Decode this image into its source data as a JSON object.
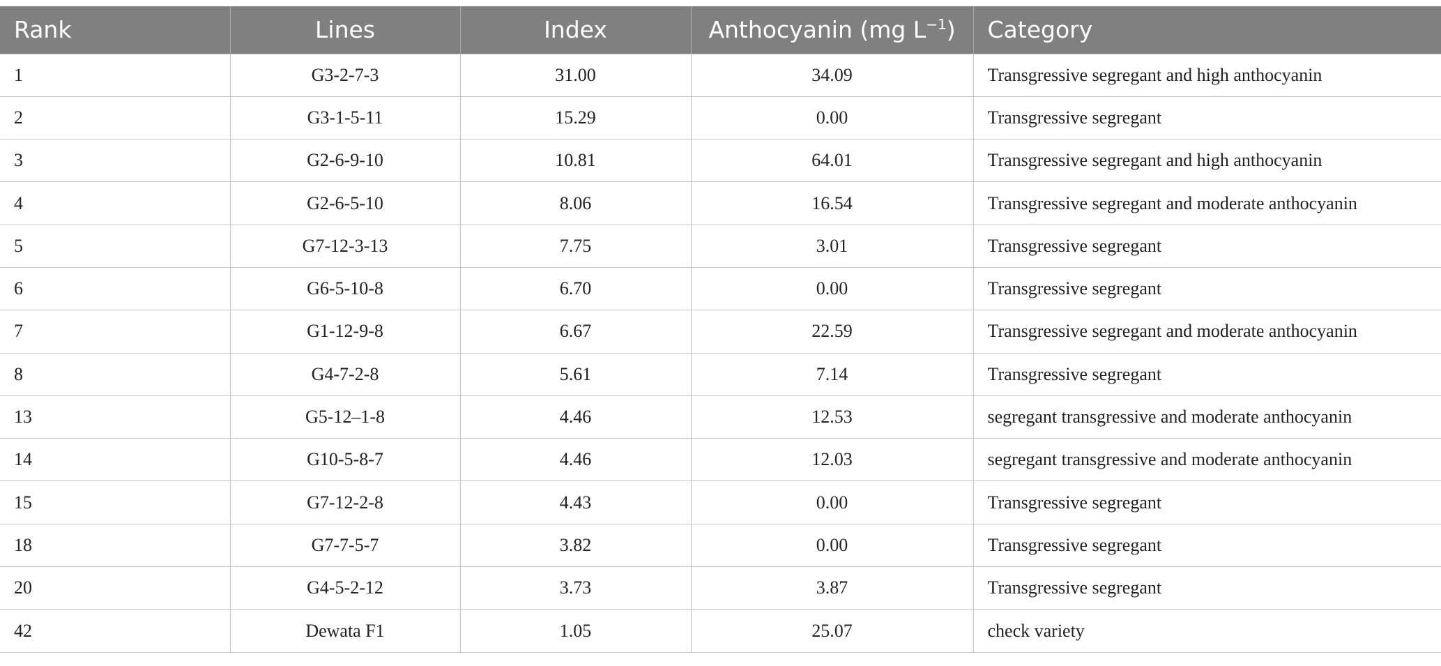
{
  "table": {
    "headers": {
      "rank": "Rank",
      "lines": "Lines",
      "index": "Index",
      "anthocyanin": "Anthocyanin (mg L",
      "anthocyanin_sup": "−1",
      "anthocyanin_close": ")",
      "category": "Category"
    },
    "rows": [
      {
        "rank": "1",
        "line": "G3-2-7-3",
        "index": "31.00",
        "anthocyanin": "34.09",
        "category": "Transgressive segregant and high anthocyanin"
      },
      {
        "rank": "2",
        "line": "G3-1-5-11",
        "index": "15.29",
        "anthocyanin": "0.00",
        "category": "Transgressive segregant"
      },
      {
        "rank": "3",
        "line": "G2-6-9-10",
        "index": "10.81",
        "anthocyanin": "64.01",
        "category": "Transgressive segregant and high anthocyanin"
      },
      {
        "rank": "4",
        "line": "G2-6-5-10",
        "index": "8.06",
        "anthocyanin": "16.54",
        "category": "Transgressive segregant and moderate anthocyanin"
      },
      {
        "rank": "5",
        "line": "G7-12-3-13",
        "index": "7.75",
        "anthocyanin": "3.01",
        "category": "Transgressive segregant"
      },
      {
        "rank": "6",
        "line": "G6-5-10-8",
        "index": "6.70",
        "anthocyanin": "0.00",
        "category": "Transgressive segregant"
      },
      {
        "rank": "7",
        "line": "G1-12-9-8",
        "index": "6.67",
        "anthocyanin": "22.59",
        "category": "Transgressive segregant and moderate anthocyanin"
      },
      {
        "rank": "8",
        "line": "G4-7-2-8",
        "index": "5.61",
        "anthocyanin": "7.14",
        "category": "Transgressive segregant"
      },
      {
        "rank": "13",
        "line": "G5-12–1-8",
        "index": "4.46",
        "anthocyanin": "12.53",
        "category": "segregant transgressive and moderate anthocyanin"
      },
      {
        "rank": "14",
        "line": "G10-5-8-7",
        "index": "4.46",
        "anthocyanin": "12.03",
        "category": "segregant transgressive and moderate anthocyanin"
      },
      {
        "rank": "15",
        "line": "G7-12-2-8",
        "index": "4.43",
        "anthocyanin": "0.00",
        "category": "Transgressive segregant"
      },
      {
        "rank": "18",
        "line": "G7-7-5-7",
        "index": "3.82",
        "anthocyanin": "0.00",
        "category": "Transgressive segregant"
      },
      {
        "rank": "20",
        "line": "G4-5-2-12",
        "index": "3.73",
        "anthocyanin": "3.87",
        "category": "Transgressive segregant"
      },
      {
        "rank": "42",
        "line": "Dewata F1",
        "index": "1.05",
        "anthocyanin": "25.07",
        "category": "check variety"
      }
    ]
  }
}
